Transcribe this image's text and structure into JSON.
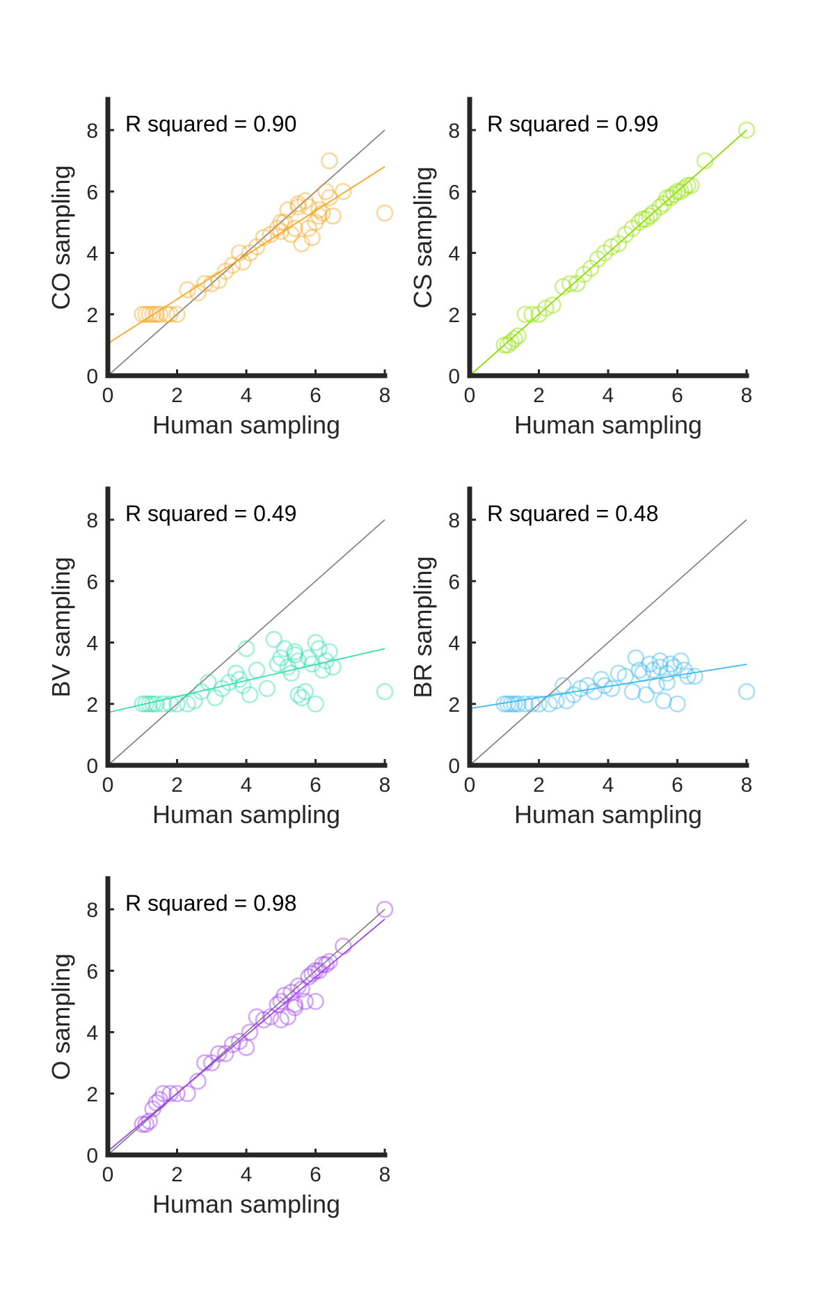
{
  "chart_data": [
    {
      "type": "scatter",
      "ylabel": "CO sampling",
      "xlabel": "Human sampling",
      "annotation": "R squared = 0.90",
      "xlim": [
        0,
        8
      ],
      "ylim": [
        0,
        9
      ],
      "xticks": [
        0,
        2,
        4,
        6,
        8
      ],
      "yticks": [
        0,
        2,
        4,
        6,
        8
      ],
      "color": "#F5A623",
      "fit_line": {
        "intercept": 1.05,
        "slope": 0.72
      },
      "identity_line": true,
      "x": [
        1.0,
        1.1,
        1.2,
        1.3,
        1.4,
        1.5,
        1.7,
        1.8,
        2.0,
        2.3,
        2.6,
        2.8,
        3.0,
        3.2,
        3.4,
        3.6,
        3.8,
        3.9,
        4.1,
        4.3,
        4.5,
        4.7,
        4.9,
        5.0,
        5.1,
        5.2,
        5.3,
        5.4,
        5.5,
        5.6,
        5.7,
        5.8,
        5.9,
        6.0,
        6.1,
        6.2,
        6.3,
        6.4,
        6.5,
        6.8,
        8.0,
        5.5,
        5.0,
        5.8,
        6.4,
        6.1
      ],
      "y": [
        2.0,
        2.0,
        2.0,
        2.0,
        2.0,
        2.0,
        2.0,
        2.0,
        2.0,
        2.8,
        2.7,
        3.0,
        3.0,
        3.1,
        3.4,
        3.6,
        4.0,
        3.7,
        4.0,
        4.2,
        4.5,
        4.6,
        4.8,
        4.7,
        5.0,
        5.4,
        4.6,
        4.8,
        5.5,
        4.3,
        5.7,
        4.8,
        4.5,
        5.0,
        5.2,
        5.3,
        6.0,
        7.0,
        5.2,
        6.0,
        5.3,
        5.6,
        5.0,
        5.5,
        5.8,
        5.4
      ]
    },
    {
      "type": "scatter",
      "ylabel": "CS sampling",
      "xlabel": "Human sampling",
      "annotation": "R squared = 0.99",
      "xlim": [
        0,
        8
      ],
      "ylim": [
        0,
        9
      ],
      "xticks": [
        0,
        2,
        4,
        6,
        8
      ],
      "yticks": [
        0,
        2,
        4,
        6,
        8
      ],
      "color": "#8EE000",
      "fit_line": {
        "intercept": 0.0,
        "slope": 1.0
      },
      "identity_line": true,
      "x": [
        1.0,
        1.1,
        1.2,
        1.3,
        1.4,
        1.6,
        1.8,
        2.0,
        2.2,
        2.4,
        2.7,
        2.9,
        3.1,
        3.3,
        3.5,
        3.7,
        3.9,
        4.1,
        4.3,
        4.5,
        4.7,
        4.9,
        5.0,
        5.1,
        5.2,
        5.3,
        5.5,
        5.6,
        5.7,
        5.8,
        5.9,
        6.0,
        6.1,
        6.2,
        6.3,
        6.4,
        6.8,
        8.0
      ],
      "y": [
        1.0,
        1.0,
        1.1,
        1.2,
        1.3,
        2.0,
        2.0,
        2.0,
        2.2,
        2.3,
        2.9,
        3.0,
        3.0,
        3.3,
        3.5,
        3.8,
        4.0,
        4.2,
        4.3,
        4.6,
        4.8,
        5.0,
        5.1,
        5.1,
        5.2,
        5.3,
        5.5,
        5.6,
        5.8,
        5.8,
        5.9,
        6.0,
        6.0,
        6.1,
        6.2,
        6.2,
        7.0,
        8.0
      ]
    },
    {
      "type": "scatter",
      "ylabel": "BV sampling",
      "xlabel": "Human sampling",
      "annotation": "R squared = 0.49",
      "xlim": [
        0,
        8
      ],
      "ylim": [
        0,
        9
      ],
      "xticks": [
        0,
        2,
        4,
        6,
        8
      ],
      "yticks": [
        0,
        2,
        4,
        6,
        8
      ],
      "color": "#33E0AA",
      "fit_line": {
        "intercept": 1.72,
        "slope": 0.26
      },
      "identity_line": true,
      "x": [
        1.0,
        1.1,
        1.2,
        1.3,
        1.4,
        1.6,
        1.8,
        2.0,
        2.3,
        2.5,
        2.7,
        2.9,
        3.1,
        3.3,
        3.5,
        3.7,
        3.8,
        3.9,
        4.0,
        4.1,
        4.3,
        4.6,
        4.8,
        4.9,
        5.0,
        5.1,
        5.2,
        5.3,
        5.4,
        5.5,
        5.6,
        5.7,
        5.8,
        5.9,
        6.0,
        6.1,
        6.2,
        6.3,
        6.4,
        6.5,
        8.0,
        5.4,
        5.5,
        6.0
      ],
      "y": [
        2.0,
        2.0,
        2.0,
        2.0,
        2.0,
        2.0,
        2.0,
        2.0,
        2.0,
        2.1,
        2.4,
        2.7,
        2.2,
        2.5,
        2.7,
        3.0,
        2.8,
        2.6,
        3.8,
        2.3,
        3.1,
        2.5,
        4.1,
        3.3,
        3.5,
        3.8,
        3.2,
        3.0,
        3.7,
        3.4,
        2.2,
        2.4,
        3.5,
        3.3,
        2.0,
        3.8,
        3.1,
        3.4,
        3.7,
        3.2,
        2.4,
        3.6,
        2.3,
        4.0
      ]
    },
    {
      "type": "scatter",
      "ylabel": "BR sampling",
      "xlabel": "Human sampling",
      "annotation": "R squared = 0.48",
      "xlim": [
        0,
        8
      ],
      "ylim": [
        0,
        9
      ],
      "xticks": [
        0,
        2,
        4,
        6,
        8
      ],
      "yticks": [
        0,
        2,
        4,
        6,
        8
      ],
      "color": "#40B8F0",
      "fit_line": {
        "intercept": 1.85,
        "slope": 0.18
      },
      "identity_line": true,
      "x": [
        1.0,
        1.1,
        1.2,
        1.3,
        1.4,
        1.6,
        1.8,
        2.0,
        2.3,
        2.5,
        2.7,
        2.8,
        3.0,
        3.2,
        3.4,
        3.6,
        3.8,
        3.9,
        4.1,
        4.3,
        4.5,
        4.7,
        4.8,
        4.9,
        5.0,
        5.1,
        5.2,
        5.3,
        5.4,
        5.5,
        5.6,
        5.7,
        5.8,
        5.9,
        6.0,
        6.1,
        6.2,
        6.3,
        6.5,
        8.0,
        5.5,
        5.7
      ],
      "y": [
        2.0,
        2.0,
        2.0,
        2.0,
        2.0,
        2.0,
        2.0,
        2.0,
        2.0,
        2.1,
        2.6,
        2.1,
        2.3,
        2.5,
        2.6,
        2.4,
        2.8,
        2.6,
        2.5,
        3.0,
        2.9,
        2.4,
        3.5,
        3.1,
        3.0,
        2.3,
        3.3,
        3.1,
        2.6,
        3.4,
        2.1,
        3.0,
        3.3,
        3.2,
        2.0,
        3.4,
        3.1,
        2.9,
        2.9,
        2.4,
        3.2,
        2.7
      ]
    },
    {
      "type": "scatter",
      "ylabel": "O sampling",
      "xlabel": "Human sampling",
      "annotation": "R squared = 0.98",
      "xlim": [
        0,
        8
      ],
      "ylim": [
        0,
        9
      ],
      "xticks": [
        0,
        2,
        4,
        6,
        8
      ],
      "yticks": [
        0,
        2,
        4,
        6,
        8
      ],
      "color": "#A040F0",
      "fit_line": {
        "intercept": 0.12,
        "slope": 0.945
      },
      "identity_line": true,
      "x": [
        1.0,
        1.1,
        1.2,
        1.3,
        1.4,
        1.5,
        1.6,
        1.8,
        2.0,
        2.3,
        2.6,
        2.8,
        3.0,
        3.2,
        3.4,
        3.6,
        3.8,
        4.0,
        4.1,
        4.3,
        4.5,
        4.7,
        4.9,
        5.0,
        5.1,
        5.2,
        5.3,
        5.4,
        5.5,
        5.6,
        5.7,
        5.8,
        5.9,
        6.0,
        6.1,
        6.2,
        6.3,
        6.4,
        6.8,
        8.0,
        5.0,
        5.4,
        6.0
      ],
      "y": [
        1.0,
        1.0,
        1.1,
        1.5,
        1.7,
        1.8,
        2.0,
        2.0,
        2.0,
        2.0,
        2.4,
        3.0,
        3.0,
        3.3,
        3.3,
        3.6,
        3.7,
        3.5,
        4.0,
        4.5,
        4.4,
        4.5,
        4.9,
        5.0,
        5.2,
        4.5,
        5.3,
        4.8,
        5.5,
        5.4,
        5.0,
        5.8,
        5.9,
        6.0,
        6.0,
        6.2,
        6.2,
        6.3,
        6.8,
        8.0,
        4.4,
        4.9,
        5.0
      ]
    }
  ]
}
